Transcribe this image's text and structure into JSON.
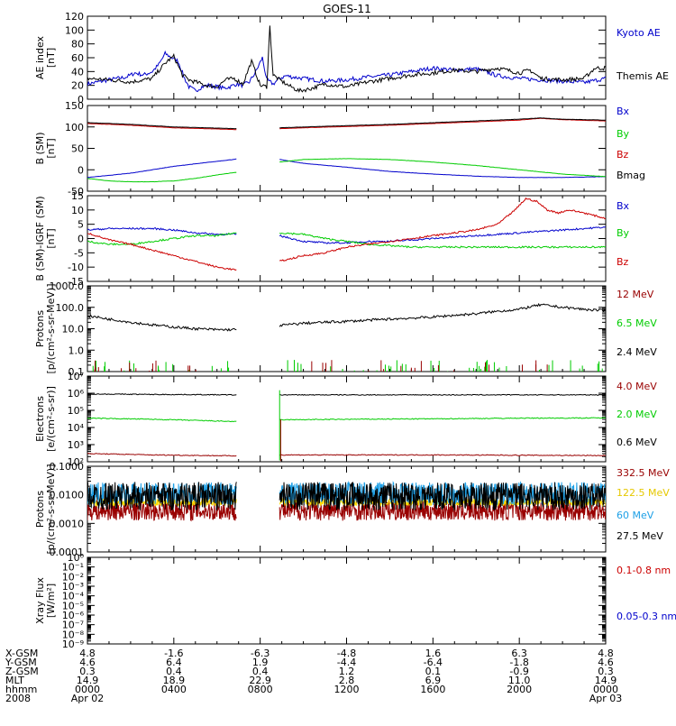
{
  "title": "GOES-11",
  "chart_data": [
    {
      "panel": "ae",
      "type": "line",
      "ylabel": [
        "AE index",
        "[nT]"
      ],
      "ylim": [
        0,
        120
      ],
      "yticks": [
        0,
        20,
        40,
        60,
        80,
        100,
        120
      ],
      "ylog": false,
      "xlim": [
        0,
        24
      ],
      "series": [
        {
          "name": "Kyoto AE",
          "color": "#0000cc",
          "x": [
            0,
            1,
            1.8,
            2.2,
            2.6,
            3,
            3.3,
            3.6,
            3.9,
            4.2,
            4.5,
            4.7,
            5,
            5.3,
            5.6,
            6,
            6.3,
            6.6,
            6.9,
            7.2,
            7.5,
            7.8,
            8.1,
            8.3,
            8.6,
            8.9,
            9.2,
            9.5,
            10,
            11,
            12,
            13,
            14,
            15,
            16,
            17,
            18,
            19,
            20,
            21,
            22,
            23,
            24
          ],
          "y": [
            22,
            28,
            32,
            38,
            35,
            40,
            50,
            66,
            60,
            55,
            30,
            18,
            12,
            18,
            20,
            18,
            16,
            18,
            22,
            20,
            25,
            40,
            60,
            28,
            22,
            30,
            34,
            32,
            30,
            26,
            28,
            32,
            35,
            40,
            45,
            42,
            44,
            34,
            30,
            28,
            26,
            24,
            30
          ]
        },
        {
          "name": "Themis AE",
          "color": "#000000",
          "x": [
            0,
            1,
            2,
            3,
            3.4,
            3.7,
            4,
            4.4,
            4.7,
            5,
            5.5,
            6,
            6.4,
            6.8,
            7.2,
            7.6,
            8,
            8.3,
            8.45,
            8.6,
            8.9,
            9.3,
            9.8,
            10.3,
            11,
            12,
            13,
            14,
            15,
            16,
            17,
            18,
            19,
            20,
            20.5,
            21,
            22,
            23,
            23.5,
            24
          ],
          "y": [
            30,
            28,
            25,
            30,
            45,
            55,
            62,
            35,
            28,
            25,
            20,
            18,
            28,
            30,
            22,
            55,
            20,
            18,
            105,
            35,
            28,
            20,
            12,
            15,
            22,
            18,
            25,
            30,
            35,
            38,
            42,
            40,
            45,
            38,
            42,
            30,
            28,
            30,
            45,
            45
          ]
        }
      ]
    },
    {
      "panel": "bsm",
      "type": "line",
      "ylabel": [
        "B (SM)",
        "[nT]"
      ],
      "ylim": [
        -50,
        150
      ],
      "yticks": [
        -50,
        0,
        50,
        100,
        150
      ],
      "ylog": false,
      "xlim": [
        0,
        24
      ],
      "gap": [
        6.9,
        8.9
      ],
      "series": [
        {
          "name": "Bx",
          "color": "#0000cc",
          "x": [
            0,
            2,
            4,
            6.9,
            8.9,
            10,
            12,
            14,
            16,
            18,
            20,
            22,
            24
          ],
          "y": [
            -18,
            -8,
            8,
            25,
            24,
            15,
            6,
            -4,
            -10,
            -15,
            -18,
            -18,
            -16
          ]
        },
        {
          "name": "By",
          "color": "#00cc00",
          "x": [
            0,
            1,
            2,
            3,
            4,
            5,
            6,
            6.9,
            8.9,
            10,
            12,
            14,
            16,
            18,
            20,
            22,
            24
          ],
          "y": [
            -20,
            -26,
            -28,
            -28,
            -26,
            -20,
            -12,
            -6,
            18,
            24,
            26,
            24,
            18,
            10,
            0,
            -10,
            -16
          ]
        },
        {
          "name": "Bz",
          "color": "#cc0000",
          "x": [
            0,
            2,
            4,
            6.9,
            8.9,
            10,
            12,
            14,
            16,
            18,
            20,
            21,
            22,
            24
          ],
          "y": [
            108,
            104,
            98,
            94,
            96,
            98,
            101,
            104,
            108,
            112,
            116,
            120,
            117,
            114
          ]
        },
        {
          "name": "Bmag",
          "color": "#000000",
          "x": [
            0,
            2,
            4,
            6.9,
            8.9,
            10,
            12,
            14,
            16,
            18,
            20,
            21,
            22,
            24
          ],
          "y": [
            110,
            106,
            100,
            96,
            98,
            100,
            103,
            106,
            110,
            114,
            118,
            121,
            118,
            116
          ]
        }
      ]
    },
    {
      "panel": "bigrf",
      "type": "line",
      "ylabel": [
        "B (SM)-IGRF (SM)",
        "[nT]"
      ],
      "ylim": [
        -15,
        15
      ],
      "yticks": [
        -15,
        -10,
        -5,
        0,
        5,
        10,
        15
      ],
      "ylog": false,
      "xlim": [
        0,
        24
      ],
      "gap": [
        6.9,
        8.9
      ],
      "series": [
        {
          "name": "Bx",
          "color": "#0000cc",
          "x": [
            0,
            1,
            2,
            3,
            4,
            5,
            6,
            6.9,
            8.9,
            10,
            11,
            12,
            13,
            14,
            15,
            16,
            17,
            18,
            19,
            20,
            21,
            22,
            23,
            24
          ],
          "y": [
            3,
            3.5,
            3.5,
            3.5,
            3,
            2,
            1.5,
            1.5,
            1,
            -1,
            -1.5,
            -1.5,
            -1,
            -1,
            -0.5,
            0,
            0.5,
            1,
            1.5,
            2,
            2.5,
            3,
            3.5,
            4
          ]
        },
        {
          "name": "By",
          "color": "#00cc00",
          "x": [
            0,
            1,
            2,
            3,
            4,
            5,
            6,
            6.9,
            8.9,
            10,
            11,
            12,
            13,
            14,
            15,
            16,
            17,
            18,
            19,
            20,
            21,
            22,
            23,
            24
          ],
          "y": [
            -1,
            -2,
            -2,
            -1,
            0,
            1,
            1,
            2,
            2,
            1.5,
            0,
            -1,
            -2,
            -2.5,
            -3,
            -3,
            -3,
            -3,
            -3,
            -3,
            -3,
            -3,
            -3,
            -3
          ]
        },
        {
          "name": "Bz",
          "color": "#cc0000",
          "x": [
            0,
            1,
            2,
            3,
            4,
            5,
            6,
            6.9,
            8.9,
            10,
            11,
            12,
            13,
            14,
            15,
            16,
            17,
            18,
            19,
            19.8,
            20.3,
            20.8,
            21.3,
            21.8,
            22.3,
            23,
            24
          ],
          "y": [
            2,
            -0.5,
            -2,
            -4,
            -6,
            -8,
            -10,
            -11,
            -8,
            -6,
            -5,
            -3,
            -2,
            -1,
            0,
            1,
            2,
            3,
            5,
            10,
            14,
            13,
            10,
            9,
            10,
            9,
            7
          ]
        }
      ]
    },
    {
      "panel": "protons",
      "type": "line",
      "ylabel": [
        "Protons",
        "[p/(cm²-s-sr-MeV)]"
      ],
      "ylim": [
        0.1,
        1000
      ],
      "ytick_values": [
        0.1,
        1,
        10,
        100,
        1000
      ],
      "ytick_labels": [
        "0.1",
        "1.0",
        "10.0",
        "100.0",
        "1000.0"
      ],
      "ylog": true,
      "xlim": [
        0,
        24
      ],
      "gap": [
        6.9,
        8.9
      ],
      "series": [
        {
          "name": "12 MeV",
          "color": "#990000",
          "x": [],
          "y": []
        },
        {
          "name": "6.5 MeV",
          "color": "#00cc00",
          "x": [],
          "y": []
        },
        {
          "name": "2.4 MeV",
          "color": "#000000",
          "x": [
            0,
            1,
            2,
            3,
            4,
            5,
            6,
            6.9,
            8.9,
            10,
            12,
            14,
            16,
            18,
            20,
            21,
            22,
            23,
            24
          ],
          "y": [
            40,
            28,
            20,
            15,
            12,
            10,
            9,
            9,
            14,
            18,
            22,
            28,
            35,
            50,
            80,
            130,
            100,
            80,
            70
          ]
        }
      ]
    },
    {
      "panel": "electrons",
      "type": "line",
      "ylabel": [
        "Electrons",
        "[e/(cm²-s-sr)]"
      ],
      "ylim": [
        100,
        10000000
      ],
      "ytick_values": [
        100,
        1000,
        10000,
        100000,
        1000000,
        10000000
      ],
      "ytick_labels": [
        "10²",
        "10³",
        "10⁴",
        "10⁵",
        "10⁶",
        "10⁷"
      ],
      "ylog": true,
      "xlim": [
        0,
        24
      ],
      "gap": [
        6.9,
        8.9
      ],
      "series": [
        {
          "name": "4.0 MeV",
          "color": "#990000",
          "x": [
            0,
            3,
            6.9,
            8.9,
            12,
            16,
            20,
            24
          ],
          "y": [
            300,
            250,
            220,
            250,
            250,
            250,
            240,
            230
          ]
        },
        {
          "name": "2.0 MeV",
          "color": "#00cc00",
          "x": [
            0,
            3,
            6.9,
            8.9,
            12,
            16,
            20,
            24
          ],
          "y": [
            35000,
            30000,
            22000,
            28000,
            30000,
            32000,
            35000,
            36000
          ]
        },
        {
          "name": "0.6 MeV",
          "color": "#000000",
          "x": [
            0,
            3,
            6.9,
            8.9,
            12,
            16,
            20,
            24
          ],
          "y": [
            900000,
            850000,
            800000,
            800000,
            800000,
            800000,
            800000,
            800000
          ]
        }
      ]
    },
    {
      "panel": "hiprotons",
      "type": "line",
      "ylabel": [
        "Protons",
        "[p/(cm²-s-sr-MeV)]"
      ],
      "ylim": [
        0.0001,
        0.1
      ],
      "ytick_values": [
        0.0001,
        0.001,
        0.01,
        0.1
      ],
      "ytick_labels": [
        "0.0001",
        "0.0010",
        "0.0100",
        "0.1000"
      ],
      "ylog": true,
      "xlim": [
        0,
        24
      ],
      "gap": [
        6.9,
        8.9
      ],
      "series": [
        {
          "name": "332.5 MeV",
          "color": "#990000",
          "level": 0.0028,
          "spread": 0.35
        },
        {
          "name": "122.5 MeV",
          "color": "#ffdd00",
          "level": 0.0055,
          "spread": 0.12
        },
        {
          "name": "60 MeV",
          "color": "#1ea0e6",
          "level": 0.011,
          "spread": 0.4
        },
        {
          "name": "27.5 MeV",
          "color": "#000000",
          "level": 0.009,
          "spread": 0.5
        }
      ]
    },
    {
      "panel": "xray",
      "type": "line",
      "ylabel": [
        "Xray Flux",
        "[W/m²]"
      ],
      "ylim": [
        1e-09,
        1
      ],
      "ytick_values": [
        1e-09,
        1e-08,
        1e-07,
        1e-06,
        1e-05,
        0.0001,
        0.001,
        0.01,
        0.1,
        1
      ],
      "ytick_labels": [
        "10⁻⁹",
        "10⁻⁸",
        "10⁻⁷",
        "10⁻⁶",
        "10⁻⁵",
        "10⁻⁴",
        "10⁻³",
        "10⁻²",
        "10⁻¹",
        "10⁰"
      ],
      "ylog": true,
      "xlim": [
        0,
        24
      ],
      "series": [
        {
          "name": "0.1-0.8 nm",
          "color": "#cc0000",
          "x": [],
          "y": []
        },
        {
          "name": "0.05-0.3 nm",
          "color": "#0000cc",
          "x": [],
          "y": []
        }
      ]
    }
  ],
  "legends": {
    "ae": [
      {
        "text": "Kyoto AE",
        "color": "#0000cc"
      },
      {
        "text": "Themis AE",
        "color": "#000000"
      }
    ],
    "bsm": [
      {
        "text": "Bx",
        "color": "#0000cc"
      },
      {
        "text": "By",
        "color": "#00cc00"
      },
      {
        "text": "Bz",
        "color": "#cc0000"
      },
      {
        "text": "Bmag",
        "color": "#000000"
      }
    ],
    "bigrf": [
      {
        "text": "Bx",
        "color": "#0000cc"
      },
      {
        "text": "By",
        "color": "#00cc00"
      },
      {
        "text": "Bz",
        "color": "#cc0000"
      }
    ],
    "protons": [
      {
        "text": "12 MeV",
        "color": "#990000"
      },
      {
        "text": "6.5 MeV",
        "color": "#00cc00"
      },
      {
        "text": "2.4 MeV",
        "color": "#000000"
      }
    ],
    "electrons": [
      {
        "text": "4.0 MeV",
        "color": "#990000"
      },
      {
        "text": "2.0 MeV",
        "color": "#00cc00"
      },
      {
        "text": "0.6 MeV",
        "color": "#000000"
      }
    ],
    "hiprotons": [
      {
        "text": "332.5 MeV",
        "color": "#990000"
      },
      {
        "text": "122.5 MeV",
        "color": "#ffdd00"
      },
      {
        "text": "60 MeV",
        "color": "#1ea0e6"
      },
      {
        "text": "27.5 MeV",
        "color": "#000000"
      }
    ],
    "xray": [
      {
        "text": "0.1-0.8 nm",
        "color": "#cc0000"
      },
      {
        "text": "0.05-0.3 nm",
        "color": "#0000cc"
      }
    ]
  },
  "ephemeris": {
    "labels": [
      "X-GSM",
      "Y-GSM",
      "Z-GSM",
      "MLT",
      "hhmm",
      "2008"
    ],
    "columns": [
      {
        "x": 0,
        "values": [
          "4.8",
          "4.6",
          "0.3",
          "14.9",
          "0000",
          "Apr 02"
        ]
      },
      {
        "x": 4,
        "values": [
          "-1.6",
          "6.4",
          "0.4",
          "18.9",
          "0400",
          ""
        ]
      },
      {
        "x": 8,
        "values": [
          "-6.3",
          "1.9",
          "0.4",
          "22.9",
          "0800",
          ""
        ]
      },
      {
        "x": 12,
        "values": [
          "-4.8",
          "-4.4",
          "1.2",
          "2.8",
          "1200",
          ""
        ]
      },
      {
        "x": 16,
        "values": [
          "1.6",
          "-6.4",
          "0.1",
          "6.9",
          "1600",
          ""
        ]
      },
      {
        "x": 20,
        "values": [
          "6.3",
          "-1.8",
          "-0.9",
          "11.0",
          "2000",
          ""
        ]
      },
      {
        "x": 24,
        "values": [
          "4.8",
          "4.6",
          "0.3",
          "14.9",
          "0000",
          "Apr 03"
        ]
      }
    ]
  }
}
